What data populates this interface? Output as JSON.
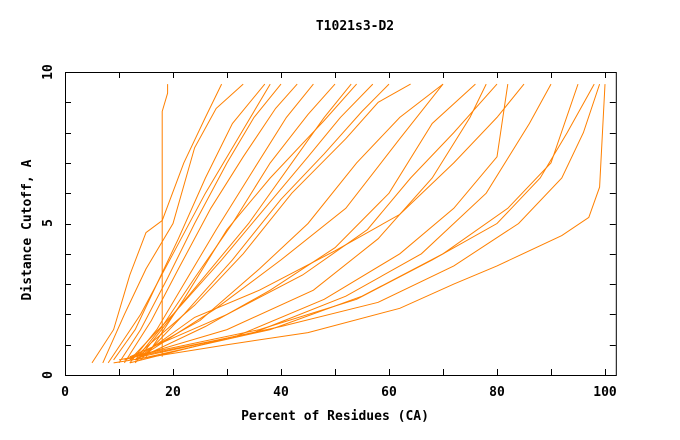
{
  "chart_data": {
    "type": "line",
    "title": "T1021s3-D2",
    "xlabel": "Percent of Residues (CA)",
    "ylabel": "Distance Cutoff, A",
    "xlim": [
      0,
      102
    ],
    "ylim": [
      0,
      10
    ],
    "xticks": [
      "0",
      "20",
      "40",
      "60",
      "80",
      "100"
    ],
    "yticks": [
      "0",
      "5",
      "10"
    ],
    "grid": false,
    "legend": "none",
    "line_color": "#ff8000",
    "series": [
      {
        "points": [
          [
            18,
            0.6
          ],
          [
            18,
            8.7
          ],
          [
            19,
            9.3
          ],
          [
            19,
            9.6
          ]
        ]
      },
      {
        "points": [
          [
            5,
            0.4
          ],
          [
            9,
            1.5
          ],
          [
            12,
            3.3
          ],
          [
            15,
            4.7
          ],
          [
            18,
            5.1
          ],
          [
            22,
            7.0
          ],
          [
            26,
            8.5
          ],
          [
            29,
            9.6
          ]
        ]
      },
      {
        "points": [
          [
            7,
            0.4
          ],
          [
            11,
            2
          ],
          [
            15,
            3.5
          ],
          [
            20,
            5
          ],
          [
            24,
            7.5
          ],
          [
            28,
            8.8
          ],
          [
            33,
            9.6
          ]
        ]
      },
      {
        "points": [
          [
            8,
            0.4
          ],
          [
            14,
            2
          ],
          [
            20,
            4
          ],
          [
            26,
            6
          ],
          [
            32,
            7.8
          ],
          [
            38,
            9.6
          ]
        ]
      },
      {
        "points": [
          [
            9,
            0.5
          ],
          [
            13,
            1.5
          ],
          [
            17,
            3
          ],
          [
            21,
            4.5
          ],
          [
            26,
            6.5
          ],
          [
            31,
            8.3
          ],
          [
            37,
            9.6
          ]
        ]
      },
      {
        "points": [
          [
            10,
            0.4
          ],
          [
            14,
            1.5
          ],
          [
            19,
            3.2
          ],
          [
            24,
            5
          ],
          [
            30,
            7
          ],
          [
            35,
            8.5
          ],
          [
            40,
            9.6
          ]
        ]
      },
      {
        "points": [
          [
            11,
            0.4
          ],
          [
            16,
            1.8
          ],
          [
            21,
            3.5
          ],
          [
            27,
            5.5
          ],
          [
            33,
            7.2
          ],
          [
            39,
            8.8
          ],
          [
            43,
            9.6
          ]
        ]
      },
      {
        "points": [
          [
            12,
            0.4
          ],
          [
            17,
            1.5
          ],
          [
            22,
            3
          ],
          [
            28,
            4.8
          ],
          [
            35,
            6.8
          ],
          [
            41,
            8.5
          ],
          [
            46,
            9.6
          ]
        ]
      },
      {
        "points": [
          [
            13,
            0.5
          ],
          [
            18,
            1.6
          ],
          [
            24,
            3.2
          ],
          [
            31,
            5
          ],
          [
            38,
            7
          ],
          [
            45,
            8.6
          ],
          [
            50,
            9.6
          ]
        ]
      },
      {
        "points": [
          [
            12,
            0.5
          ],
          [
            20,
            2
          ],
          [
            27,
            3.5
          ],
          [
            34,
            5
          ],
          [
            42,
            7
          ],
          [
            48,
            8.5
          ],
          [
            53,
            9.6
          ]
        ]
      },
      {
        "points": [
          [
            15,
            0.6
          ],
          [
            22,
            2.5
          ],
          [
            30,
            4.8
          ],
          [
            38,
            6.5
          ],
          [
            48,
            8.4
          ],
          [
            54,
            9.6
          ]
        ]
      },
      {
        "points": [
          [
            13,
            0.4
          ],
          [
            21,
            2.2
          ],
          [
            29,
            3.8
          ],
          [
            37,
            5.5
          ],
          [
            45,
            7.2
          ],
          [
            51,
            8.5
          ],
          [
            57,
            9.6
          ]
        ]
      },
      {
        "points": [
          [
            14,
            0.5
          ],
          [
            22,
            2
          ],
          [
            31,
            3.8
          ],
          [
            40,
            5.8
          ],
          [
            48,
            7.3
          ],
          [
            55,
            8.7
          ],
          [
            60,
            9.6
          ]
        ]
      },
      {
        "points": [
          [
            13,
            0.6
          ],
          [
            24,
            2.3
          ],
          [
            33,
            4
          ],
          [
            42,
            6
          ],
          [
            52,
            7.8
          ],
          [
            58,
            9
          ],
          [
            64,
            9.6
          ]
        ]
      },
      {
        "points": [
          [
            12,
            0.5
          ],
          [
            25,
            1.8
          ],
          [
            36,
            3.5
          ],
          [
            45,
            5
          ],
          [
            54,
            7
          ],
          [
            62,
            8.5
          ],
          [
            70,
            9.6
          ]
        ]
      },
      {
        "points": [
          [
            14,
            0.6
          ],
          [
            28,
            2.2
          ],
          [
            40,
            3.8
          ],
          [
            52,
            5.5
          ],
          [
            62,
            7.8
          ],
          [
            70,
            9.6
          ]
        ]
      },
      {
        "points": [
          [
            13,
            0.5
          ],
          [
            26,
            1.6
          ],
          [
            38,
            2.8
          ],
          [
            50,
            4.2
          ],
          [
            60,
            6
          ],
          [
            68,
            8.3
          ],
          [
            76,
            9.6
          ]
        ]
      },
      {
        "points": [
          [
            12,
            0.6
          ],
          [
            30,
            2
          ],
          [
            44,
            3.3
          ],
          [
            56,
            4.8
          ],
          [
            64,
            6.5
          ],
          [
            72,
            8
          ],
          [
            80,
            9.6
          ]
        ]
      },
      {
        "points": [
          [
            11,
            0.5
          ],
          [
            30,
            1.5
          ],
          [
            46,
            2.8
          ],
          [
            58,
            4.5
          ],
          [
            68,
            6.5
          ],
          [
            75,
            8.5
          ],
          [
            78,
            9.6
          ]
        ]
      },
      {
        "points": [
          [
            12,
            0.4
          ],
          [
            32,
            1.3
          ],
          [
            48,
            2.5
          ],
          [
            62,
            4
          ],
          [
            72,
            5.5
          ],
          [
            80,
            7.2
          ],
          [
            82,
            9.6
          ]
        ]
      },
      {
        "points": [
          [
            13,
            0.5
          ],
          [
            24,
            1.9
          ],
          [
            36,
            2.8
          ],
          [
            50,
            4.1
          ],
          [
            62,
            5.3
          ],
          [
            72,
            7
          ],
          [
            80,
            8.5
          ],
          [
            85,
            9.6
          ]
        ]
      },
      {
        "points": [
          [
            10,
            0.5
          ],
          [
            35,
            1.4
          ],
          [
            52,
            2.6
          ],
          [
            66,
            4
          ],
          [
            78,
            6
          ],
          [
            86,
            8.3
          ],
          [
            90,
            9.6
          ]
        ]
      },
      {
        "points": [
          [
            13,
            0.5
          ],
          [
            38,
            1.5
          ],
          [
            55,
            2.6
          ],
          [
            70,
            4
          ],
          [
            82,
            5.5
          ],
          [
            90,
            7
          ],
          [
            95,
            9.6
          ]
        ]
      },
      {
        "points": [
          [
            12,
            0.6
          ],
          [
            36,
            1.5
          ],
          [
            54,
            2.5
          ],
          [
            68,
            3.8
          ],
          [
            80,
            5
          ],
          [
            88,
            6.5
          ],
          [
            93,
            8
          ],
          [
            98,
            9.6
          ]
        ]
      },
      {
        "points": [
          [
            14,
            0.6
          ],
          [
            40,
            1.6
          ],
          [
            58,
            2.4
          ],
          [
            72,
            3.6
          ],
          [
            84,
            5
          ],
          [
            92,
            6.5
          ],
          [
            96,
            8
          ],
          [
            99,
            9.6
          ]
        ]
      },
      {
        "points": [
          [
            9,
            0.4
          ],
          [
            30,
            1
          ],
          [
            45,
            1.4
          ],
          [
            62,
            2.2
          ],
          [
            72,
            3
          ],
          [
            80,
            3.6
          ],
          [
            92,
            4.6
          ],
          [
            97,
            5.2
          ],
          [
            99,
            6.2
          ],
          [
            100,
            9.6
          ]
        ]
      }
    ]
  }
}
